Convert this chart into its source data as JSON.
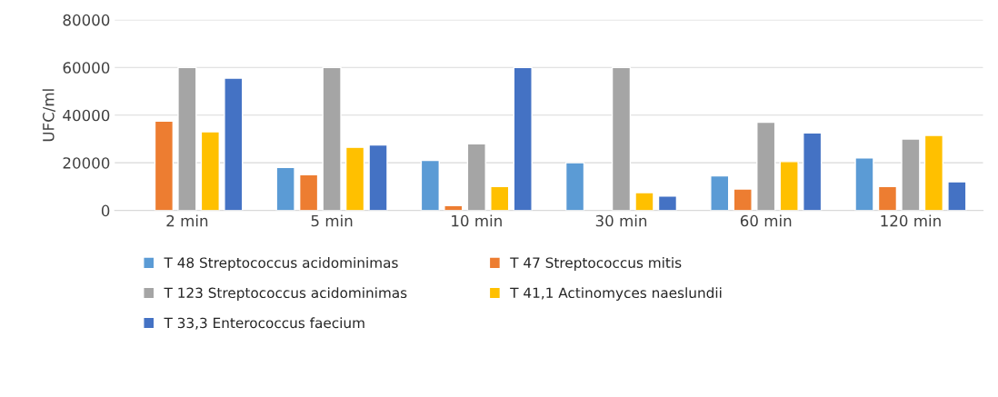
{
  "chart_data": {
    "type": "bar",
    "ylabel": "UFC/ml",
    "categories": [
      "2 min",
      "5 min",
      "10 min",
      "30 min",
      "60 min",
      "120 min"
    ],
    "series": [
      {
        "name": "T 48 Streptococcus acidominimas",
        "color": "#5b9bd5",
        "values": [
          null,
          18000,
          21000,
          20000,
          14500,
          22000
        ]
      },
      {
        "name": "T 47 Streptococcus mitis",
        "color": "#ed7d31",
        "values": [
          37500,
          15000,
          2000,
          null,
          9000,
          10000
        ]
      },
      {
        "name": "T 123 Streptococcus acidominimas",
        "color": "#a5a5a5",
        "values": [
          60000,
          60000,
          28000,
          60000,
          37000,
          30000
        ]
      },
      {
        "name": "T 41,1 Actinomyces naeslundii",
        "color": "#ffc000",
        "values": [
          33000,
          26500,
          10000,
          7500,
          20500,
          31500
        ]
      },
      {
        "name": "T 33,3 Enterococcus faecium",
        "color": "#4472c4",
        "values": [
          55500,
          27500,
          60000,
          6000,
          32500,
          12000
        ]
      }
    ],
    "ylim": [
      0,
      80000
    ],
    "yticks": [
      0,
      20000,
      40000,
      60000,
      80000
    ],
    "grid": "y",
    "legend": "bottom"
  }
}
